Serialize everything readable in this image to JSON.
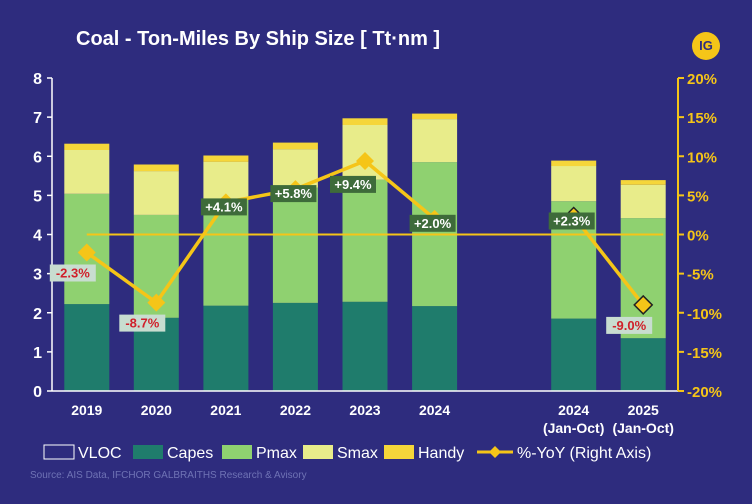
{
  "header": {
    "title": "Coal - Ton-Miles By Ship Size [ Tt·nm ]",
    "logo_text": "IG"
  },
  "footer": {
    "source": "Source: AIS Data, IFCHOR GALBRAITHS Research & Avisory"
  },
  "colors": {
    "background": "#2e2c7e",
    "VLOC": "#2e2c7e",
    "Capes": "#1f7c6c",
    "Pmax": "#8fd170",
    "Smax": "#e8ec8a",
    "Handy": "#f5d63a",
    "yoy_line": "#f5c518",
    "positive_label_bg": "#3e6b3a",
    "negative_label_bg": "#c8ddd0",
    "positive_label_text": "#ffffff",
    "negative_label_text": "#d0202a"
  },
  "chart_data": {
    "type": "bar",
    "stacked": true,
    "title": "Coal - Ton-Miles By Ship Size [ Tt·nm ]",
    "categories": [
      "2019",
      "2020",
      "2021",
      "2022",
      "2023",
      "2024",
      "",
      "2024\n(Jan-Oct)",
      "2025\n(Jan-Oct)"
    ],
    "category_lines": [
      [
        "2019"
      ],
      [
        "2020"
      ],
      [
        "2021"
      ],
      [
        "2022"
      ],
      [
        "2023"
      ],
      [
        "2024"
      ],
      [],
      [
        "2024",
        "(Jan-Oct)"
      ],
      [
        "2025",
        "(Jan-Oct)"
      ]
    ],
    "ylim": [
      0,
      8
    ],
    "yticks": [
      0,
      1,
      2,
      3,
      4,
      5,
      6,
      7,
      8
    ],
    "y2lim": [
      -20,
      20
    ],
    "y2ticks": [
      "20%",
      "15%",
      "10%",
      "5%",
      "0%",
      "-5%",
      "-10%",
      "-15%",
      "-20%"
    ],
    "y2tick_values": [
      20,
      15,
      10,
      5,
      0,
      -5,
      -10,
      -15,
      -20
    ],
    "series": [
      {
        "name": "VLOC",
        "values": [
          0,
          0,
          0,
          0,
          0,
          0,
          null,
          0,
          0
        ]
      },
      {
        "name": "Capes",
        "values": [
          2.22,
          1.87,
          2.18,
          2.25,
          2.28,
          2.17,
          null,
          1.85,
          1.35
        ]
      },
      {
        "name": "Pmax",
        "values": [
          2.82,
          2.63,
          2.72,
          2.95,
          3.12,
          3.68,
          null,
          3.0,
          3.07
        ]
      },
      {
        "name": "Smax",
        "values": [
          1.12,
          1.12,
          0.96,
          0.98,
          1.4,
          1.1,
          null,
          0.9,
          0.85
        ]
      },
      {
        "name": "Handy",
        "values": [
          0.16,
          0.17,
          0.16,
          0.17,
          0.17,
          0.14,
          null,
          0.14,
          0.12
        ]
      }
    ],
    "yoy": {
      "name": "%-YoY (Right Axis)",
      "axis": "right",
      "values": [
        -2.3,
        -8.7,
        4.1,
        5.8,
        9.4,
        2.0,
        null,
        2.3,
        -9.0
      ],
      "labels": [
        "-2.3%",
        "-8.7%",
        "+4.1%",
        "+5.8%",
        "+9.4%",
        "+2.0%",
        "",
        "+2.3%",
        "-9.0%"
      ]
    },
    "legend": {
      "position": "bottom",
      "items": [
        "VLOC",
        "Capes",
        "Pmax",
        "Smax",
        "Handy",
        "%-YoY (Right Axis)"
      ]
    },
    "grid": false
  }
}
